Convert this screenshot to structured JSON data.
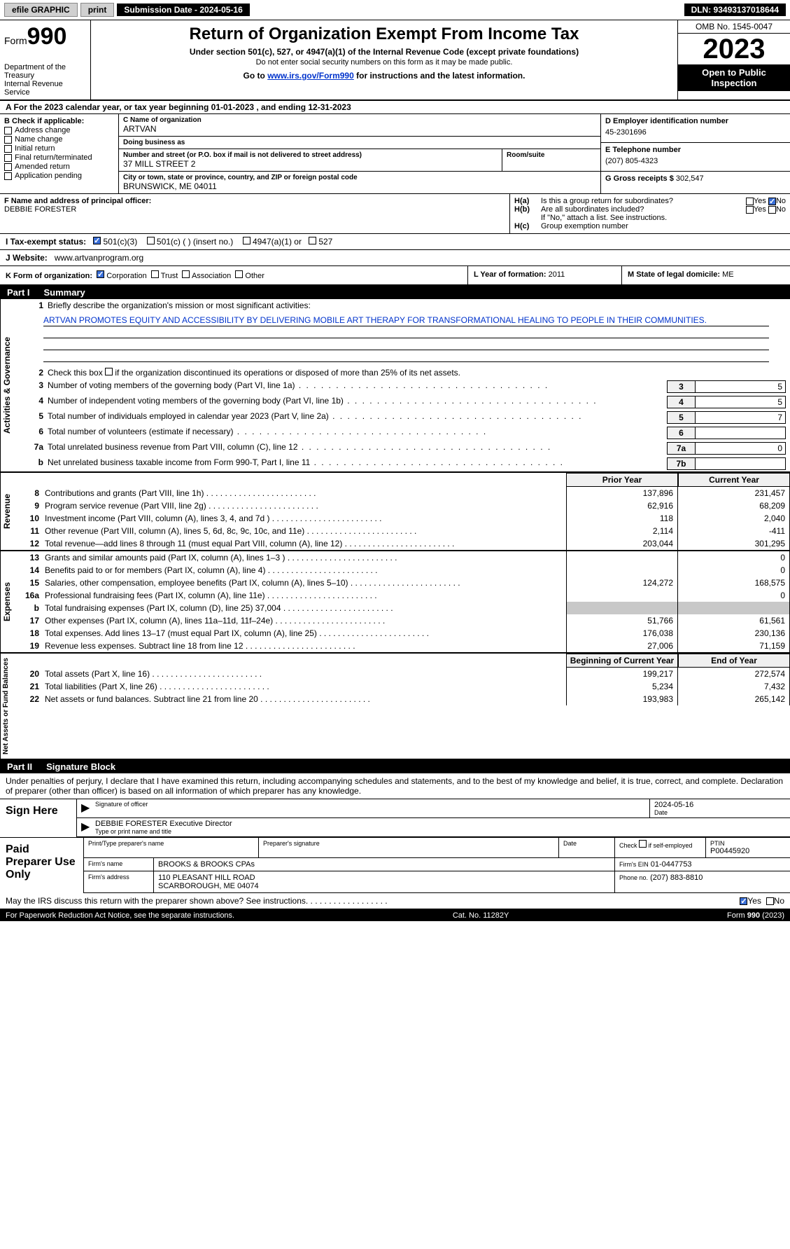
{
  "topbar": {
    "efile": "efile GRAPHIC",
    "print": "print",
    "subdate": "Submission Date - 2024-05-16",
    "dln": "DLN: 93493137018644"
  },
  "header": {
    "form_prefix": "Form",
    "form_no": "990",
    "title": "Return of Organization Exempt From Income Tax",
    "subtitle": "Under section 501(c), 527, or 4947(a)(1) of the Internal Revenue Code (except private foundations)",
    "note1": "Do not enter social security numbers on this form as it may be made public.",
    "goto": "Go to ",
    "goto_link": "www.irs.gov/Form990",
    "goto_tail": " for instructions and the latest information.",
    "dept": "Department of the Treasury\nInternal Revenue Service",
    "omb": "OMB No. 1545-0047",
    "year": "2023",
    "otp": "Open to Public Inspection"
  },
  "period": "A For the 2023 calendar year, or tax year beginning 01-01-2023   , and ending 12-31-2023",
  "boxB": {
    "title": "B Check if applicable:",
    "opts": [
      "Address change",
      "Name change",
      "Initial return",
      "Final return/terminated",
      "Amended return",
      "Application pending"
    ]
  },
  "boxC": {
    "name_lbl": "C Name of organization",
    "name": "ARTVAN",
    "dba_lbl": "Doing business as",
    "dba": "",
    "street_lbl": "Number and street (or P.O. box if mail is not delivered to street address)",
    "street": "37 MILL STREET 2",
    "suite_lbl": "Room/suite",
    "suite": "",
    "city_lbl": "City or town, state or province, country, and ZIP or foreign postal code",
    "city": "BRUNSWICK, ME  04011"
  },
  "boxD": {
    "ein_lbl": "D Employer identification number",
    "ein": "45-2301696",
    "phone_lbl": "E Telephone number",
    "phone": "(207) 805-4323",
    "gross_lbl": "G Gross receipts $",
    "gross": "302,547"
  },
  "boxF": {
    "lbl": "F  Name and address of principal officer:",
    "val": "DEBBIE FORESTER"
  },
  "boxH": {
    "a": "H(a)  Is this a group return for subordinates?",
    "b": "H(b)  Are all subordinates included?",
    "bnote": "If \"No,\" attach a list. See instructions.",
    "c": "H(c)  Group exemption number",
    "yes": "Yes",
    "no": "No"
  },
  "boxI": {
    "lbl": "I   Tax-exempt status:",
    "o1": "501(c)(3)",
    "o2": "501(c) (  ) (insert no.)",
    "o3": "4947(a)(1) or",
    "o4": "527"
  },
  "boxJ": {
    "lbl": "J   Website:",
    "val": "www.artvanprogram.org"
  },
  "boxK": {
    "lbl": "K Form of organization:",
    "o1": "Corporation",
    "o2": "Trust",
    "o3": "Association",
    "o4": "Other"
  },
  "boxL": {
    "lbl": "L Year of formation:",
    "val": "2011"
  },
  "boxM": {
    "lbl": "M State of legal domicile:",
    "val": "ME"
  },
  "part1": {
    "title": "Part I",
    "sub": "Summary",
    "l1": "Briefly describe the organization's mission or most significant activities:",
    "mission": "ARTVAN PROMOTES EQUITY AND ACCESSIBILITY BY DELIVERING MOBILE ART THERAPY FOR TRANSFORMATIONAL HEALING TO PEOPLE IN THEIR COMMUNITIES.",
    "l2": "Check this box      if the organization discontinued its operations or disposed of more than 25% of its net assets.",
    "rows_ag": [
      {
        "n": "3",
        "t": "Number of voting members of the governing body (Part VI, line 1a)",
        "box": "3",
        "v": "5"
      },
      {
        "n": "4",
        "t": "Number of independent voting members of the governing body (Part VI, line 1b)",
        "box": "4",
        "v": "5"
      },
      {
        "n": "5",
        "t": "Total number of individuals employed in calendar year 2023 (Part V, line 2a)",
        "box": "5",
        "v": "7"
      },
      {
        "n": "6",
        "t": "Total number of volunteers (estimate if necessary)",
        "box": "6",
        "v": ""
      },
      {
        "n": "7a",
        "t": "Total unrelated business revenue from Part VIII, column (C), line 12",
        "box": "7a",
        "v": "0"
      },
      {
        "n": "b",
        "t": "Net unrelated business taxable income from Form 990-T, Part I, line 11",
        "box": "7b",
        "v": ""
      }
    ],
    "col_prior": "Prior Year",
    "col_curr": "Current Year",
    "rev": [
      {
        "n": "8",
        "t": "Contributions and grants (Part VIII, line 1h)",
        "p": "137,896",
        "c": "231,457"
      },
      {
        "n": "9",
        "t": "Program service revenue (Part VIII, line 2g)",
        "p": "62,916",
        "c": "68,209"
      },
      {
        "n": "10",
        "t": "Investment income (Part VIII, column (A), lines 3, 4, and 7d )",
        "p": "118",
        "c": "2,040"
      },
      {
        "n": "11",
        "t": "Other revenue (Part VIII, column (A), lines 5, 6d, 8c, 9c, 10c, and 11e)",
        "p": "2,114",
        "c": "-411"
      },
      {
        "n": "12",
        "t": "Total revenue—add lines 8 through 11 (must equal Part VIII, column (A), line 12)",
        "p": "203,044",
        "c": "301,295"
      }
    ],
    "exp": [
      {
        "n": "13",
        "t": "Grants and similar amounts paid (Part IX, column (A), lines 1–3 )",
        "p": "",
        "c": "0"
      },
      {
        "n": "14",
        "t": "Benefits paid to or for members (Part IX, column (A), line 4)",
        "p": "",
        "c": "0"
      },
      {
        "n": "15",
        "t": "Salaries, other compensation, employee benefits (Part IX, column (A), lines 5–10)",
        "p": "124,272",
        "c": "168,575"
      },
      {
        "n": "16a",
        "t": "Professional fundraising fees (Part IX, column (A), line 11e)",
        "p": "",
        "c": "0"
      },
      {
        "n": "b",
        "t": "Total fundraising expenses (Part IX, column (D), line 25) 37,004",
        "p": "grey",
        "c": "grey"
      },
      {
        "n": "17",
        "t": "Other expenses (Part IX, column (A), lines 11a–11d, 11f–24e)",
        "p": "51,766",
        "c": "61,561"
      },
      {
        "n": "18",
        "t": "Total expenses. Add lines 13–17 (must equal Part IX, column (A), line 25)",
        "p": "176,038",
        "c": "230,136"
      },
      {
        "n": "19",
        "t": "Revenue less expenses. Subtract line 18 from line 12",
        "p": "27,006",
        "c": "71,159"
      }
    ],
    "na_hdr1": "Beginning of Current Year",
    "na_hdr2": "End of Year",
    "net": [
      {
        "n": "20",
        "t": "Total assets (Part X, line 16)",
        "p": "199,217",
        "c": "272,574"
      },
      {
        "n": "21",
        "t": "Total liabilities (Part X, line 26)",
        "p": "5,234",
        "c": "7,432"
      },
      {
        "n": "22",
        "t": "Net assets or fund balances. Subtract line 21 from line 20",
        "p": "193,983",
        "c": "265,142"
      }
    ],
    "vlab_ag": "Activities & Governance",
    "vlab_rev": "Revenue",
    "vlab_exp": "Expenses",
    "vlab_net": "Net Assets or Fund Balances"
  },
  "part2": {
    "title": "Part II",
    "sub": "Signature Block",
    "decl": "Under penalties of perjury, I declare that I have examined this return, including accompanying schedules and statements, and to the best of my knowledge and belief, it is true, correct, and complete. Declaration of preparer (other than officer) is based on all information of which preparer has any knowledge."
  },
  "sign": {
    "side": "Sign Here",
    "sig_lbl": "Signature of officer",
    "date_lbl": "Date",
    "date": "2024-05-16",
    "name": "DEBBIE FORESTER  Executive Director",
    "name_lbl": "Type or print name and title"
  },
  "paid": {
    "side": "Paid Preparer Use Only",
    "h1": "Print/Type preparer's name",
    "h2": "Preparer's signature",
    "h3": "Date",
    "h4": "Check       if self-employed",
    "h5": "PTIN",
    "ptin": "P00445920",
    "firm_lbl": "Firm's name",
    "firm": "BROOKS & BROOKS CPAs",
    "ein_lbl": "Firm's EIN",
    "ein": "01-0447753",
    "addr_lbl": "Firm's address",
    "addr1": "110 PLEASANT HILL ROAD",
    "addr2": "SCARBOROUGH, ME  04074",
    "phone_lbl": "Phone no.",
    "phone": "(207) 883-8810"
  },
  "may": {
    "txt": "May the IRS discuss this return with the preparer shown above? See instructions.",
    "yes": "Yes",
    "no": "No"
  },
  "footer": {
    "left": "For Paperwork Reduction Act Notice, see the separate instructions.",
    "mid": "Cat. No. 11282Y",
    "right": "Form 990 (2023)"
  }
}
